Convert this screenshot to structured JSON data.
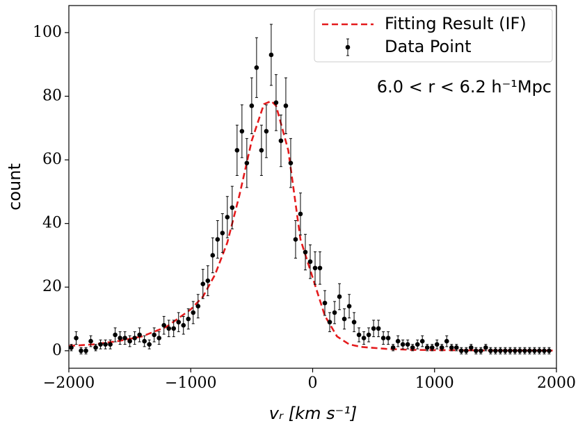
{
  "chart_data": {
    "type": "scatter",
    "xlabel": "vᵣ [km s⁻¹]",
    "ylabel": "count",
    "annotation": "6.0 < r < 6.2 h⁻¹Mpc",
    "xlim": [
      -2000,
      2000
    ],
    "ylim": [
      -5.5,
      108.5
    ],
    "xticks": [
      {
        "value": -2000,
        "label": "−2000"
      },
      {
        "value": -1000,
        "label": "−1000"
      },
      0,
      1000,
      2000
    ],
    "yticks": [
      0,
      20,
      40,
      60,
      80,
      100
    ],
    "legend": "upper right",
    "series": [
      {
        "name": "Fitting Result (IF)",
        "kind": "line",
        "color": "#e41a1c",
        "x": [
          -2000,
          -1800,
          -1600,
          -1400,
          -1200,
          -1000,
          -900,
          -800,
          -700,
          -600,
          -500,
          -400,
          -340,
          -300,
          -200,
          -100,
          0,
          100,
          200,
          300,
          400,
          600,
          800,
          1000,
          1500,
          2000
        ],
        "values": [
          1.5,
          2,
          3,
          4.5,
          7.5,
          13,
          17,
          24,
          34,
          49,
          66,
          77.5,
          78.5,
          77,
          63,
          35,
          23,
          11,
          4.5,
          2,
          1.2,
          0.6,
          0.3,
          0.2,
          0.1,
          0.05
        ]
      },
      {
        "name": "Data Point",
        "kind": "errorbar",
        "color": "#000000",
        "x": [
          -1980,
          -1940,
          -1900,
          -1860,
          -1820,
          -1780,
          -1740,
          -1700,
          -1660,
          -1620,
          -1580,
          -1540,
          -1500,
          -1460,
          -1420,
          -1380,
          -1340,
          -1300,
          -1260,
          -1220,
          -1180,
          -1140,
          -1100,
          -1060,
          -1020,
          -980,
          -940,
          -900,
          -860,
          -820,
          -780,
          -740,
          -700,
          -660,
          -620,
          -580,
          -540,
          -500,
          -460,
          -420,
          -380,
          -340,
          -300,
          -260,
          -220,
          -180,
          -140,
          -100,
          -60,
          -20,
          20,
          60,
          100,
          140,
          180,
          220,
          260,
          300,
          340,
          380,
          420,
          460,
          500,
          540,
          580,
          620,
          660,
          700,
          740,
          780,
          820,
          860,
          900,
          940,
          980,
          1020,
          1060,
          1100,
          1140,
          1180,
          1220,
          1260,
          1300,
          1340,
          1380,
          1420,
          1460,
          1500,
          1540,
          1580,
          1620,
          1660,
          1700,
          1740,
          1780,
          1820,
          1860,
          1900,
          1940
        ],
        "values": [
          1,
          4,
          0,
          0,
          3,
          1,
          2,
          2,
          2,
          5,
          4,
          4,
          3,
          4,
          5,
          3,
          2,
          5,
          4,
          8,
          7,
          7,
          9,
          8,
          10,
          12,
          14,
          21,
          22,
          30,
          35,
          37,
          42,
          45,
          63,
          69,
          59,
          77,
          89,
          63,
          69,
          93,
          78,
          66,
          77,
          59,
          35,
          43,
          31,
          28,
          26,
          26,
          15,
          9,
          12,
          17,
          10,
          14,
          9,
          5,
          4,
          5,
          7,
          7,
          4,
          4,
          1,
          3,
          2,
          2,
          1,
          2,
          3,
          1,
          1,
          2,
          1,
          3,
          1,
          1,
          0,
          0,
          1,
          0,
          0,
          1,
          0,
          0,
          0,
          0,
          0,
          0,
          0,
          0,
          0,
          0,
          0,
          0,
          0
        ],
        "errors": [
          1,
          2,
          1,
          1,
          1.7,
          1,
          1.4,
          1.4,
          1.4,
          2.2,
          2,
          2,
          1.7,
          2,
          2.2,
          1.7,
          1.4,
          2.2,
          2,
          2.8,
          2.6,
          2.6,
          3,
          2.8,
          3.2,
          3.5,
          3.7,
          4.6,
          4.7,
          5.5,
          5.9,
          6.1,
          6.5,
          6.7,
          7.9,
          8.3,
          7.7,
          8.8,
          9.4,
          7.9,
          8.3,
          9.6,
          8.8,
          8.1,
          8.8,
          7.7,
          5.9,
          6.6,
          5.6,
          5.3,
          5.1,
          5.1,
          3.9,
          3,
          3.5,
          4.1,
          3.2,
          3.7,
          3,
          2.2,
          2,
          2.2,
          2.6,
          2.6,
          2,
          2,
          1,
          1.7,
          1.4,
          1.4,
          1,
          1.4,
          1.7,
          1,
          1,
          1.4,
          1,
          1.7,
          1,
          1,
          1,
          1,
          1,
          1,
          1,
          1,
          1,
          1,
          1,
          1,
          1,
          1,
          1,
          1,
          1,
          1,
          1,
          1,
          1
        ]
      }
    ]
  }
}
